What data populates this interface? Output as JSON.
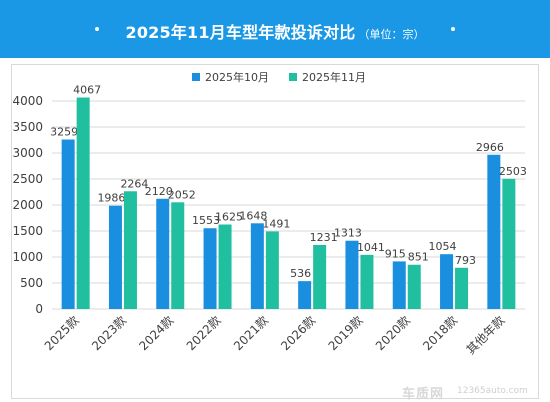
{
  "header": {
    "title": "2025年11月车型年款投诉对比",
    "unit": "（单位：宗）"
  },
  "watermark": {
    "logo": "车质网",
    "url": "12365auto.com"
  },
  "colors": {
    "header_bg": "#1a97e5",
    "series_oct": "#1a8fe0",
    "series_nov": "#1fbfa0",
    "grid": "#d9d9d9",
    "text": "#404040"
  },
  "chart_data": {
    "type": "bar",
    "categories": [
      "2025款",
      "2023款",
      "2024款",
      "2022款",
      "2021款",
      "2026款",
      "2019款",
      "2020款",
      "2018款",
      "其他年款"
    ],
    "series": [
      {
        "name": "2025年10月",
        "values": [
          3259,
          1986,
          2120,
          1553,
          1648,
          536,
          1313,
          915,
          1054,
          2966
        ]
      },
      {
        "name": "2025年11月",
        "values": [
          4067,
          2264,
          2052,
          1625,
          1491,
          1231,
          1041,
          851,
          793,
          2503
        ]
      }
    ],
    "title": "",
    "xlabel": "",
    "ylabel": "",
    "ylim": [
      0,
      4000
    ],
    "yticks": [
      0,
      500,
      1000,
      1500,
      2000,
      2500,
      3000,
      3500,
      4000
    ],
    "legend_position": "top-center",
    "grid": true,
    "data_labels": true
  }
}
